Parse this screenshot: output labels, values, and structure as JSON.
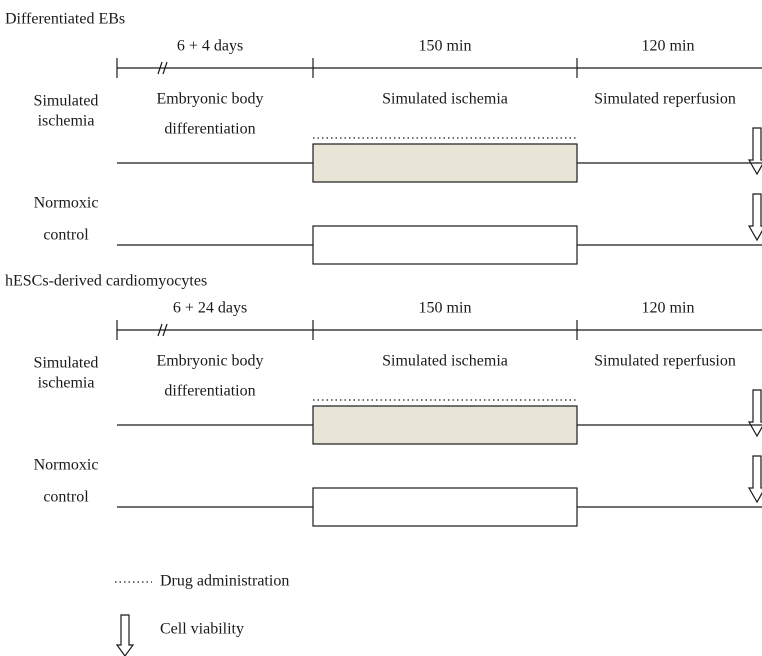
{
  "panels": [
    {
      "title": "Differentiated EBs",
      "durations": [
        "6 + 4 days",
        "150 min",
        "120 min"
      ],
      "phases": [
        [
          "Embryonic body",
          "differentiation"
        ],
        [
          "Simulated ischemia"
        ],
        [
          "Simulated reperfusion"
        ]
      ],
      "rows": [
        [
          "Simulated",
          "ischemia"
        ],
        [
          "Normoxic",
          "control"
        ]
      ]
    },
    {
      "title": "hESCs-derived cardiomyocytes",
      "durations": [
        "6 + 24 days",
        "150 min",
        "120 min"
      ],
      "phases": [
        [
          "Embryonic body",
          "differentiation"
        ],
        [
          "Simulated ischemia"
        ],
        [
          "Simulated reperfusion"
        ]
      ],
      "rows": [
        [
          "Simulated",
          "ischemia"
        ],
        [
          "Normoxic",
          "control"
        ]
      ]
    }
  ],
  "legend": {
    "drug": "Drug administration",
    "viability": "Cell viability"
  }
}
